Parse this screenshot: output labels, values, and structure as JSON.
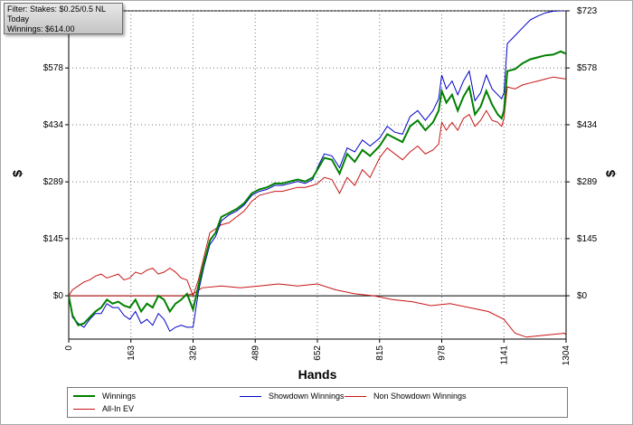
{
  "filter": {
    "line1": "Filter: Stakes: $0.25/0.5 NL",
    "line2": "Today",
    "line3": "Winnings: $614.00"
  },
  "chart_data": {
    "type": "line",
    "xlabel": "Hands",
    "ylabel": "$",
    "x_ticks": [
      0,
      163,
      326,
      489,
      652,
      815,
      978,
      1141,
      1304
    ],
    "y_ticks": [
      "$0",
      "$145",
      "$289",
      "$434",
      "$578",
      "$723"
    ],
    "y_tick_values": [
      0,
      145,
      289,
      434,
      578,
      723
    ],
    "xlim": [
      0,
      1304
    ],
    "ylim": [
      -110,
      723
    ],
    "grid": true,
    "legend_position": "bottom",
    "series": [
      {
        "name": "Winnings",
        "color": "#008000",
        "x": [
          0,
          10,
          25,
          40,
          55,
          70,
          85,
          100,
          115,
          130,
          145,
          160,
          175,
          190,
          205,
          220,
          235,
          250,
          265,
          280,
          295,
          310,
          326,
          340,
          355,
          370,
          385,
          400,
          420,
          440,
          460,
          480,
          500,
          520,
          540,
          560,
          580,
          600,
          620,
          640,
          652,
          670,
          690,
          710,
          730,
          750,
          770,
          790,
          815,
          835,
          855,
          875,
          895,
          915,
          935,
          955,
          970,
          978,
          990,
          1005,
          1020,
          1035,
          1050,
          1065,
          1080,
          1095,
          1110,
          1125,
          1135,
          1141,
          1150,
          1170,
          1190,
          1210,
          1230,
          1250,
          1270,
          1290,
          1304
        ],
        "y": [
          0,
          -50,
          -75,
          -70,
          -55,
          -40,
          -30,
          -10,
          -20,
          -15,
          -25,
          -30,
          -10,
          -40,
          -20,
          -30,
          0,
          -10,
          -40,
          -20,
          -10,
          5,
          -35,
          25,
          85,
          140,
          160,
          200,
          210,
          220,
          235,
          260,
          270,
          275,
          285,
          285,
          290,
          295,
          290,
          300,
          320,
          350,
          345,
          310,
          360,
          340,
          370,
          355,
          380,
          410,
          400,
          390,
          430,
          445,
          420,
          440,
          470,
          520,
          490,
          510,
          470,
          505,
          530,
          460,
          480,
          520,
          485,
          460,
          450,
          470,
          570,
          575,
          590,
          600,
          605,
          610,
          612,
          620,
          614
        ]
      },
      {
        "name": "Showdown Winnings",
        "color": "#0000c8",
        "x": [
          0,
          10,
          25,
          40,
          55,
          70,
          85,
          100,
          115,
          130,
          145,
          160,
          175,
          190,
          205,
          220,
          235,
          250,
          265,
          280,
          295,
          310,
          326,
          340,
          355,
          370,
          385,
          400,
          420,
          440,
          460,
          480,
          500,
          520,
          540,
          560,
          580,
          600,
          620,
          640,
          652,
          670,
          690,
          710,
          730,
          750,
          770,
          790,
          815,
          835,
          855,
          875,
          895,
          915,
          935,
          955,
          970,
          978,
          990,
          1005,
          1020,
          1035,
          1050,
          1065,
          1080,
          1095,
          1110,
          1125,
          1135,
          1141,
          1150,
          1170,
          1190,
          1210,
          1230,
          1250,
          1270,
          1290,
          1304
        ],
        "y": [
          0,
          -55,
          -70,
          -80,
          -60,
          -45,
          -45,
          -20,
          -30,
          -30,
          -50,
          -60,
          -40,
          -70,
          -60,
          -75,
          -45,
          -60,
          -90,
          -80,
          -75,
          -80,
          -80,
          10,
          75,
          130,
          150,
          190,
          205,
          215,
          230,
          255,
          265,
          270,
          280,
          280,
          285,
          290,
          285,
          295,
          325,
          360,
          355,
          325,
          375,
          365,
          395,
          380,
          400,
          430,
          415,
          410,
          455,
          470,
          445,
          470,
          500,
          560,
          525,
          545,
          510,
          545,
          570,
          495,
          515,
          560,
          525,
          510,
          500,
          515,
          640,
          660,
          680,
          700,
          710,
          718,
          722,
          723,
          723
        ]
      },
      {
        "name": "Non Showdown Winnings",
        "color": "#c81414",
        "x": [
          0,
          10,
          25,
          40,
          55,
          70,
          85,
          100,
          115,
          130,
          145,
          160,
          175,
          190,
          205,
          220,
          235,
          250,
          265,
          280,
          295,
          310,
          326,
          340,
          355,
          370,
          385,
          400,
          420,
          440,
          460,
          480,
          500,
          520,
          540,
          560,
          580,
          600,
          620,
          640,
          652,
          670,
          690,
          710,
          730,
          750,
          770,
          790,
          815,
          835,
          855,
          875,
          895,
          915,
          935,
          955,
          970,
          978,
          990,
          1005,
          1020,
          1035,
          1050,
          1065,
          1080,
          1095,
          1110,
          1125,
          1135,
          1141,
          1150,
          1170,
          1190,
          1210,
          1230,
          1250,
          1270,
          1290,
          1304
        ],
        "y": [
          0,
          15,
          25,
          35,
          40,
          50,
          55,
          45,
          50,
          55,
          40,
          45,
          60,
          55,
          65,
          70,
          55,
          60,
          70,
          60,
          45,
          40,
          0,
          40,
          100,
          160,
          170,
          180,
          185,
          200,
          215,
          240,
          255,
          260,
          265,
          265,
          270,
          275,
          275,
          280,
          285,
          300,
          295,
          260,
          300,
          280,
          320,
          300,
          350,
          375,
          360,
          345,
          365,
          380,
          360,
          370,
          385,
          440,
          420,
          440,
          420,
          450,
          460,
          430,
          445,
          470,
          445,
          440,
          430,
          450,
          530,
          525,
          535,
          540,
          545,
          550,
          555,
          552,
          550
        ]
      },
      {
        "name": "All-In EV",
        "color": "#c81414",
        "x": [
          0,
          50,
          100,
          150,
          200,
          250,
          300,
          326,
          350,
          400,
          450,
          500,
          550,
          600,
          652,
          700,
          750,
          800,
          850,
          900,
          950,
          1000,
          1050,
          1100,
          1141,
          1170,
          1200,
          1250,
          1300,
          1304
        ],
        "y": [
          0,
          0,
          0,
          0,
          0,
          0,
          0,
          5,
          20,
          25,
          20,
          25,
          30,
          25,
          30,
          15,
          5,
          0,
          -10,
          -15,
          -25,
          -20,
          -30,
          -40,
          -60,
          -95,
          -105,
          -100,
          -95,
          -100
        ]
      }
    ]
  }
}
